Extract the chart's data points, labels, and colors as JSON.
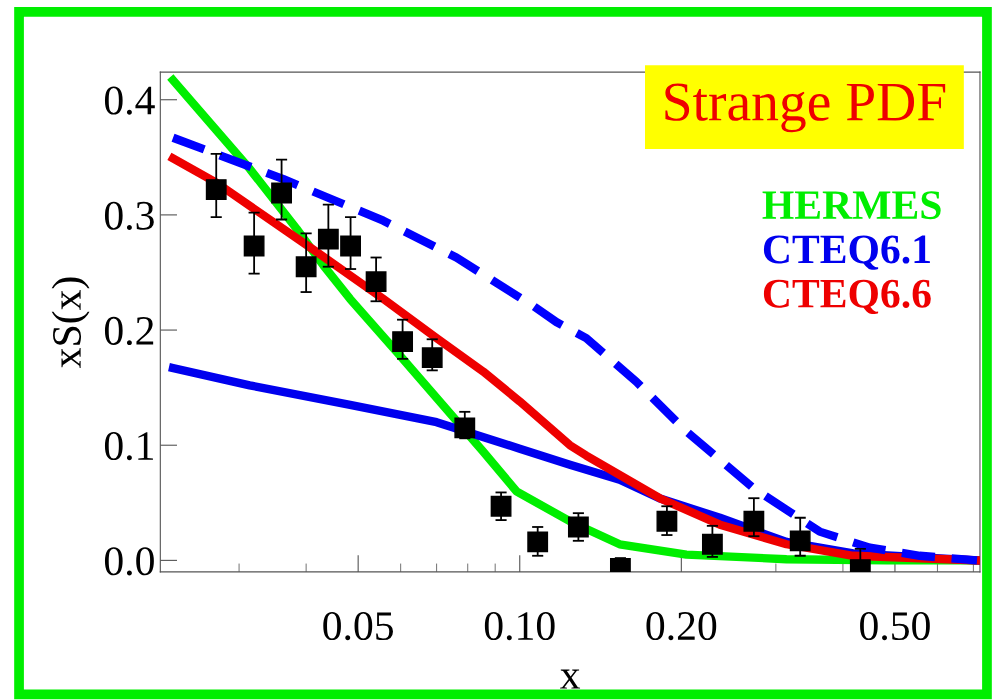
{
  "chart_data": {
    "type": "line",
    "title": "Strange PDF",
    "xlabel": "x",
    "ylabel": "xS(x)",
    "log": "x",
    "xlim": [
      0.0214,
      0.72
    ],
    "ylim": [
      -0.01,
      0.424
    ],
    "xticks": [
      {
        "value": 0.05,
        "label": "0.05"
      },
      {
        "value": 0.1,
        "label": "0.10"
      },
      {
        "value": 0.2,
        "label": "0.20"
      },
      {
        "value": 0.5,
        "label": "0.50"
      }
    ],
    "yticks": [
      {
        "value": 0,
        "label": "0.0"
      },
      {
        "value": 0.1,
        "label": "0.1"
      },
      {
        "value": 0.2,
        "label": "0.2"
      },
      {
        "value": 0.3,
        "label": "0.3"
      },
      {
        "value": 0.4,
        "label": "0.4"
      }
    ],
    "grid": false,
    "legend": "top right",
    "series": [
      {
        "type": "scatter",
        "color": "#000000",
        "marker": "square",
        "x": [
          0.0272,
          0.032,
          0.036,
          0.04,
          0.044,
          0.0484,
          0.054,
          0.0605,
          0.0687,
          0.079,
          0.0923,
          0.108,
          0.1286,
          0.154,
          0.188,
          0.2285,
          0.273,
          0.333,
          0.431
        ],
        "values": [
          0.322,
          0.273,
          0.319,
          0.255,
          0.279,
          0.273,
          0.242,
          0.19,
          0.176,
          0.115,
          0.047,
          0.016,
          0.029,
          -0.007,
          0.034,
          0.014,
          0.034,
          0.017,
          -0.008
        ],
        "errors": [
          [
            0.298,
            0.353
          ],
          [
            0.249,
            0.302
          ],
          [
            0.296,
            0.348
          ],
          [
            0.233,
            0.284
          ],
          [
            0.255,
            0.309
          ],
          [
            0.253,
            0.298
          ],
          [
            0.225,
            0.263
          ],
          [
            0.175,
            0.209
          ],
          [
            0.165,
            0.192
          ],
          [
            0.106,
            0.129
          ],
          [
            0.035,
            0.059
          ],
          [
            0.004,
            0.029
          ],
          [
            0.017,
            0.041
          ],
          [
            -0.01,
            0.002
          ],
          [
            0.022,
            0.047
          ],
          [
            0.003,
            0.03
          ],
          [
            0.021,
            0.054
          ],
          [
            0.004,
            0.037
          ],
          [
            -0.01,
            0.01
          ]
        ]
      },
      {
        "name": "HERMES",
        "color": "#00ee00",
        "line_style": "solid",
        "x": [
          0.0226,
          0.0314,
          0.0384,
          0.0431,
          0.0483,
          0.0598,
          0.0853,
          0.0986,
          0.1239,
          0.1535,
          0.2044,
          0.314,
          0.482,
          0.71
        ],
        "values": [
          0.417,
          0.34,
          0.288,
          0.256,
          0.227,
          0.178,
          0.095,
          0.06,
          0.034,
          0.014,
          0.005,
          0.001,
          0.0,
          0.0
        ]
      },
      {
        "name": "CTEQ6.1",
        "color": "#0000ee",
        "line_style": "solid",
        "x": [
          0.0226,
          0.0314,
          0.0483,
          0.07,
          0.1,
          0.124,
          0.1535,
          0.182,
          0.236,
          0.314,
          0.418,
          0.711
        ],
        "values": [
          0.167,
          0.152,
          0.135,
          0.12,
          0.097,
          0.083,
          0.07,
          0.054,
          0.037,
          0.016,
          0.006,
          0.0
        ]
      },
      {
        "name": "CTEQ6.6",
        "color": "#ee0000",
        "line_style": "solid",
        "x": [
          0.0226,
          0.0272,
          0.0418,
          0.0557,
          0.07,
          0.0855,
          0.1,
          0.124,
          0.133,
          0.1823,
          0.236,
          0.314,
          0.418,
          0.711
        ],
        "values": [
          0.349,
          0.328,
          0.268,
          0.227,
          0.193,
          0.164,
          0.138,
          0.1,
          0.091,
          0.054,
          0.031,
          0.014,
          0.004,
          0.0
        ]
      },
      {
        "color": "#0000ff",
        "line_style": "dashed",
        "x": [
          0.0226,
          0.0363,
          0.0557,
          0.0762,
          0.0986,
          0.1059,
          0.117,
          0.133,
          0.165,
          0.2044,
          0.272,
          0.362,
          0.449,
          0.556,
          0.711
        ],
        "values": [
          0.367,
          0.331,
          0.295,
          0.263,
          0.23,
          0.221,
          0.207,
          0.193,
          0.155,
          0.112,
          0.063,
          0.025,
          0.011,
          0.004,
          0.0
        ]
      }
    ]
  }
}
